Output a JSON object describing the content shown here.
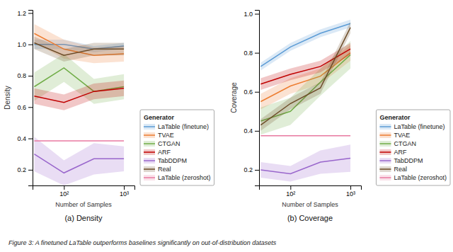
{
  "caption": "Figure 3: A finetuned LaTable outperforms baselines significantly on out-of-distribution datasets",
  "chart_data": [
    {
      "type": "line",
      "title": "(a) Density",
      "xlabel": "Number of Samples",
      "ylabel": "Density",
      "log": "x",
      "grid": false,
      "legend": "lower left",
      "legend_title": "Generator",
      "xlim": [
        30,
        1500
      ],
      "xticks": [
        {
          "value": 100,
          "label": "10²"
        },
        {
          "value": 1000,
          "label": "10³"
        }
      ],
      "ylim": [
        0.1,
        1.22
      ],
      "yticks": [
        0.2,
        0.4,
        0.6,
        0.8,
        {
          "value": 1.0,
          "label": "1.0"
        },
        1.2
      ],
      "series": [
        {
          "name": "LaTable (finetune)",
          "color": "#5b9bd5",
          "x": [
            32,
            100,
            316,
            1000
          ],
          "values": [
            1.0,
            1.0,
            0.97,
            0.99
          ],
          "lower": [
            0.97,
            0.97,
            0.95,
            0.97
          ],
          "upper": [
            1.03,
            1.03,
            0.99,
            1.01
          ]
        },
        {
          "name": "TVAE",
          "color": "#ed7d31",
          "x": [
            32,
            100,
            316,
            1000
          ],
          "values": [
            1.07,
            0.97,
            0.93,
            0.94
          ],
          "lower": [
            1.01,
            0.91,
            0.88,
            0.89
          ],
          "upper": [
            1.13,
            1.03,
            0.98,
            0.99
          ]
        },
        {
          "name": "CTGAN",
          "color": "#70ad47",
          "x": [
            32,
            100,
            316,
            1000
          ],
          "values": [
            0.73,
            0.85,
            0.7,
            0.73
          ],
          "lower": [
            0.64,
            0.76,
            0.62,
            0.65
          ],
          "upper": [
            0.82,
            0.94,
            0.78,
            0.81
          ]
        },
        {
          "name": "ARF",
          "color": "#c00000",
          "x": [
            32,
            100,
            316,
            1000
          ],
          "values": [
            0.67,
            0.63,
            0.7,
            0.72
          ],
          "lower": [
            0.62,
            0.58,
            0.65,
            0.67
          ],
          "upper": [
            0.72,
            0.68,
            0.75,
            0.77
          ]
        },
        {
          "name": "TabDDPM",
          "color": "#9966cc",
          "x": [
            32,
            100,
            316,
            1000
          ],
          "values": [
            0.3,
            0.18,
            0.27,
            0.27
          ],
          "lower": [
            0.19,
            0.1,
            0.17,
            0.19
          ],
          "upper": [
            0.41,
            0.26,
            0.37,
            0.35
          ]
        },
        {
          "name": "Real",
          "color": "#6d4c28",
          "x": [
            32,
            100,
            316,
            1000
          ],
          "values": [
            1.01,
            0.93,
            0.97,
            0.97
          ],
          "lower": [
            0.97,
            0.89,
            0.93,
            0.93
          ],
          "upper": [
            1.05,
            0.97,
            1.01,
            1.01
          ]
        },
        {
          "name": "LaTable (zeroshot)",
          "color": "#e879a0",
          "x": [
            32,
            1000
          ],
          "values": [
            0.385,
            0.385
          ],
          "lower": [
            0.385,
            0.385
          ],
          "upper": [
            0.385,
            0.385
          ]
        }
      ]
    },
    {
      "type": "line",
      "title": "(b) Coverage",
      "xlabel": "Number of Samples",
      "ylabel": "Coverage",
      "log": "x",
      "grid": false,
      "legend": "lower right",
      "legend_title": "Generator",
      "xlim": [
        30,
        1500
      ],
      "xticks": [
        {
          "value": 100,
          "label": "10²"
        },
        {
          "value": 1000,
          "label": "10³"
        }
      ],
      "ylim": [
        0.12,
        1.02
      ],
      "yticks": [
        0.2,
        0.4,
        0.6,
        0.8,
        {
          "value": 1.0,
          "label": "1.0"
        }
      ],
      "series": [
        {
          "name": "LaTable (finetune)",
          "color": "#5b9bd5",
          "x": [
            32,
            100,
            316,
            1000
          ],
          "values": [
            0.73,
            0.83,
            0.9,
            0.95
          ],
          "lower": [
            0.71,
            0.81,
            0.88,
            0.93
          ],
          "upper": [
            0.75,
            0.85,
            0.92,
            0.97
          ]
        },
        {
          "name": "TVAE",
          "color": "#ed7d31",
          "x": [
            32,
            100,
            316,
            1000
          ],
          "values": [
            0.55,
            0.63,
            0.68,
            0.8
          ],
          "lower": [
            0.51,
            0.59,
            0.64,
            0.76
          ],
          "upper": [
            0.59,
            0.67,
            0.72,
            0.84
          ]
        },
        {
          "name": "CTGAN",
          "color": "#70ad47",
          "x": [
            32,
            100,
            316,
            1000
          ],
          "values": [
            0.45,
            0.5,
            0.65,
            0.79
          ],
          "lower": [
            0.38,
            0.43,
            0.58,
            0.72
          ],
          "upper": [
            0.52,
            0.57,
            0.72,
            0.86
          ]
        },
        {
          "name": "ARF",
          "color": "#c00000",
          "x": [
            32,
            100,
            316,
            1000
          ],
          "values": [
            0.64,
            0.69,
            0.73,
            0.82
          ],
          "lower": [
            0.61,
            0.66,
            0.7,
            0.79
          ],
          "upper": [
            0.67,
            0.72,
            0.76,
            0.85
          ]
        },
        {
          "name": "TabDDPM",
          "color": "#9966cc",
          "x": [
            32,
            100,
            316,
            1000
          ],
          "values": [
            0.2,
            0.18,
            0.24,
            0.26
          ],
          "lower": [
            0.16,
            0.14,
            0.18,
            0.19
          ],
          "upper": [
            0.24,
            0.22,
            0.3,
            0.33
          ]
        },
        {
          "name": "Real",
          "color": "#6d4c28",
          "x": [
            32,
            100,
            316,
            1000
          ],
          "values": [
            0.43,
            0.54,
            0.62,
            0.93
          ],
          "lower": [
            0.4,
            0.51,
            0.59,
            0.9
          ],
          "upper": [
            0.46,
            0.57,
            0.65,
            0.96
          ]
        },
        {
          "name": "LaTable (zeroshot)",
          "color": "#e879a0",
          "x": [
            32,
            1000
          ],
          "values": [
            0.375,
            0.375
          ],
          "lower": [
            0.375,
            0.375
          ],
          "upper": [
            0.375,
            0.375
          ]
        }
      ]
    }
  ]
}
